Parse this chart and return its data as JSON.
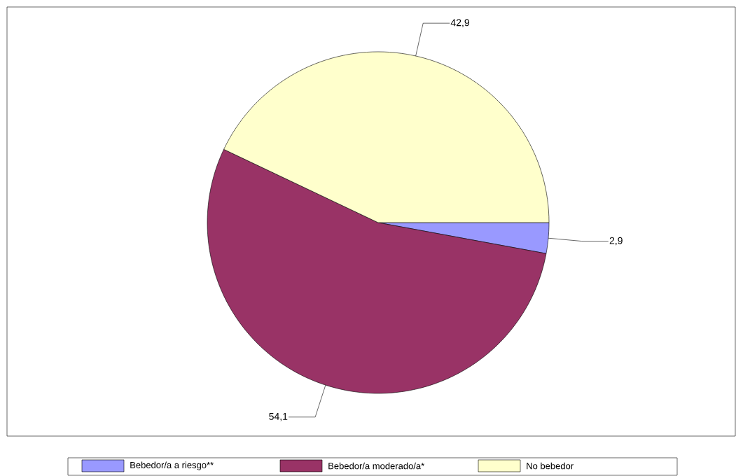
{
  "chart_data": {
    "type": "pie",
    "categories": [
      "Bebedor/a a riesgo**",
      "Bebedor/a moderado/a*",
      "No bebedor"
    ],
    "values": [
      2.9,
      54.1,
      42.9
    ],
    "colors": [
      "#9999ff",
      "#993366",
      "#ffffcc"
    ],
    "value_labels": [
      "2,9",
      "54,1",
      "42,9"
    ],
    "legend": "bottom"
  }
}
